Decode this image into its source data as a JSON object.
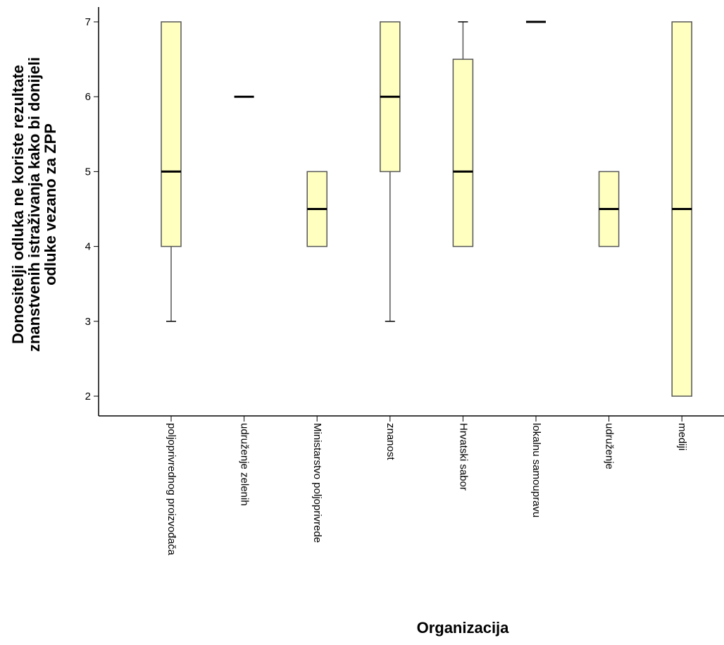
{
  "chart_data": {
    "type": "boxplot",
    "xlabel": "Organizacija",
    "ylabel_lines": [
      "Donositelji odluka ne koriste rezultate",
      "znanstvenih  istraživanja kako bi donijeli",
      "odluke vezano za ZPP"
    ],
    "ylim": [
      1.7,
      7.15
    ],
    "yticks": [
      2,
      3,
      4,
      5,
      6,
      7
    ],
    "categories": [
      "poljoprivrednog proizvođača",
      "udruženje zelenih",
      "Ministarstvo poljoprivrede",
      "znanost",
      "Hrvatski sabor",
      "lokalnu samoupravu",
      "udruženje",
      "mediji"
    ],
    "boxes": [
      {
        "min": 3,
        "q1": 4,
        "median": 5,
        "q3": 7,
        "max": 7
      },
      {
        "min": 6,
        "q1": 6,
        "median": 6,
        "q3": 6,
        "max": 6
      },
      {
        "min": 4,
        "q1": 4,
        "median": 4.5,
        "q3": 5,
        "max": 5
      },
      {
        "min": 3,
        "q1": 5,
        "median": 6,
        "q3": 7,
        "max": 7
      },
      {
        "min": 4,
        "q1": 4,
        "median": 5,
        "q3": 6.5,
        "max": 7
      },
      {
        "min": 7,
        "q1": 7,
        "median": 7,
        "q3": 7,
        "max": 7
      },
      {
        "min": 4,
        "q1": 4,
        "median": 4.5,
        "q3": 5,
        "max": 5
      },
      {
        "min": 2,
        "q1": 2,
        "median": 4.5,
        "q3": 7,
        "max": 7
      }
    ],
    "box_fill": "#ffffc0",
    "box_stroke": "#555555",
    "grid": false
  }
}
